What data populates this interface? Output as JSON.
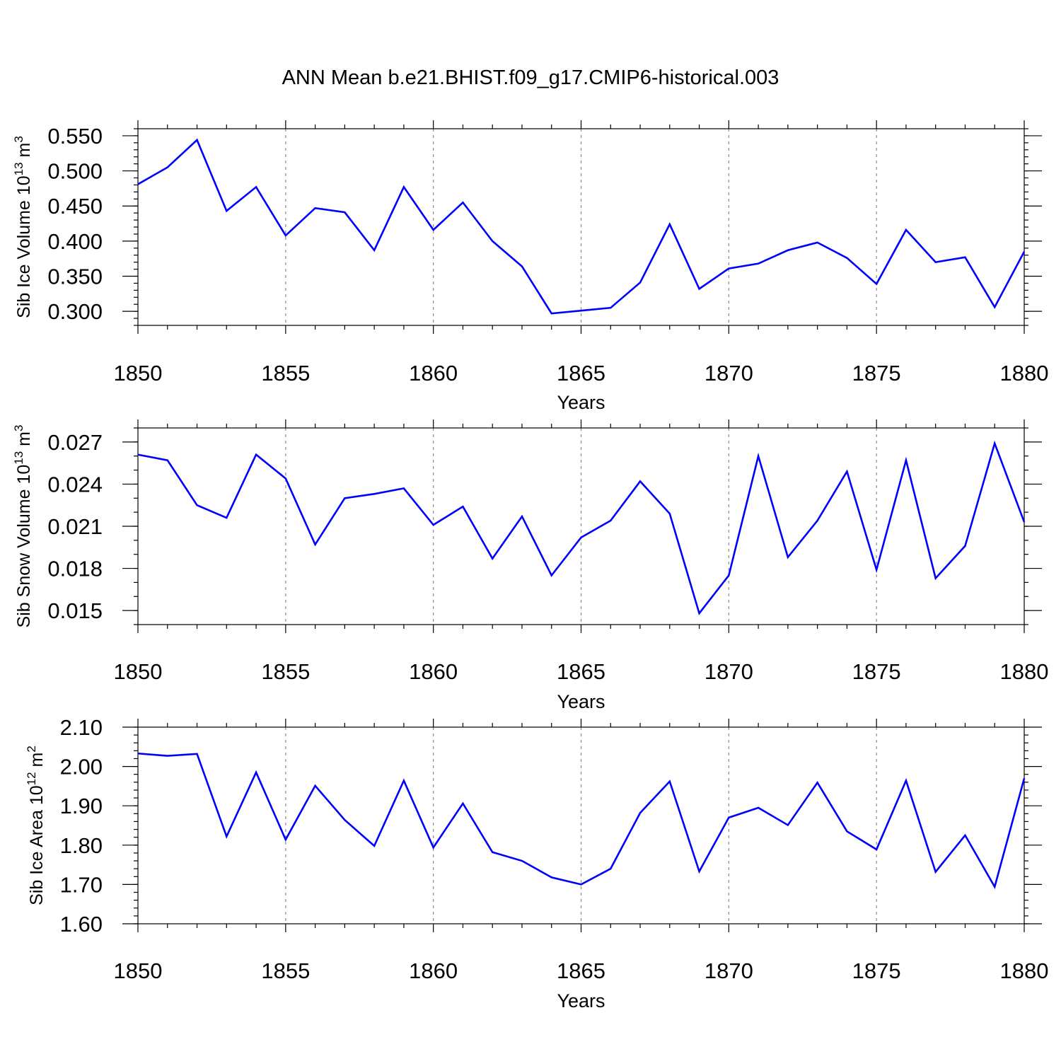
{
  "figure": {
    "title": "ANN Mean b.e21.BHIST.f09_g17.CMIP6-historical.003"
  },
  "colors": {
    "series": "#0000ff",
    "axis": "#000000",
    "grid": "#8a8a8a",
    "background": "#ffffff"
  },
  "chart_data": [
    {
      "type": "line",
      "ylabel": "Sib Ice Volume 10",
      "ylabel_exp": "13",
      "ylabel_unit": " m",
      "ylabel_unit_exp": "3",
      "xlabel": "Years",
      "xlim": [
        1850,
        1880
      ],
      "ylim": [
        0.28,
        0.56
      ],
      "x_ticks": [
        1850,
        1855,
        1860,
        1865,
        1870,
        1875,
        1880
      ],
      "y_ticks": [
        "0.300",
        "0.350",
        "0.400",
        "0.450",
        "0.500",
        "0.550"
      ],
      "y_minor_step": 0.01,
      "grid_x": "dashed",
      "series": [
        {
          "name": "Sib Ice Volume",
          "x": [
            1850,
            1851,
            1852,
            1853,
            1854,
            1855,
            1856,
            1857,
            1858,
            1859,
            1860,
            1861,
            1862,
            1863,
            1864,
            1865,
            1866,
            1867,
            1868,
            1869,
            1870,
            1871,
            1872,
            1873,
            1874,
            1875,
            1876,
            1877,
            1878,
            1879,
            1880
          ],
          "values": [
            0.481,
            0.505,
            0.544,
            0.443,
            0.477,
            0.408,
            0.447,
            0.441,
            0.387,
            0.477,
            0.416,
            0.455,
            0.4,
            0.364,
            0.297,
            0.301,
            0.305,
            0.341,
            0.424,
            0.332,
            0.361,
            0.368,
            0.387,
            0.398,
            0.376,
            0.339,
            0.416,
            0.37,
            0.377,
            0.306,
            0.385
          ]
        }
      ]
    },
    {
      "type": "line",
      "ylabel": "Sib Snow Volume 10",
      "ylabel_exp": "13",
      "ylabel_unit": " m",
      "ylabel_unit_exp": "3",
      "xlabel": "Years",
      "xlim": [
        1850,
        1880
      ],
      "ylim": [
        0.014,
        0.028
      ],
      "x_ticks": [
        1850,
        1855,
        1860,
        1865,
        1870,
        1875,
        1880
      ],
      "y_ticks": [
        "0.015",
        "0.018",
        "0.021",
        "0.024",
        "0.027"
      ],
      "y_minor_step": 0.001,
      "grid_x": "dashed",
      "series": [
        {
          "name": "Sib Snow Volume",
          "x": [
            1850,
            1851,
            1852,
            1853,
            1854,
            1855,
            1856,
            1857,
            1858,
            1859,
            1860,
            1861,
            1862,
            1863,
            1864,
            1865,
            1866,
            1867,
            1868,
            1869,
            1870,
            1871,
            1872,
            1873,
            1874,
            1875,
            1876,
            1877,
            1878,
            1879,
            1880
          ],
          "values": [
            0.0261,
            0.0257,
            0.0225,
            0.0216,
            0.0261,
            0.0244,
            0.0197,
            0.023,
            0.0233,
            0.0237,
            0.0211,
            0.0224,
            0.0187,
            0.0217,
            0.0175,
            0.0202,
            0.0214,
            0.0242,
            0.0219,
            0.0148,
            0.0175,
            0.026,
            0.0188,
            0.0214,
            0.0249,
            0.0179,
            0.0257,
            0.0173,
            0.0196,
            0.0269,
            0.0213
          ]
        }
      ]
    },
    {
      "type": "line",
      "ylabel": "Sib Ice Area 10",
      "ylabel_exp": "12",
      "ylabel_unit": " m",
      "ylabel_unit_exp": "2",
      "xlabel": "Years",
      "xlim": [
        1850,
        1880
      ],
      "ylim": [
        1.6,
        2.1
      ],
      "x_ticks": [
        1850,
        1855,
        1860,
        1865,
        1870,
        1875,
        1880
      ],
      "y_ticks": [
        "1.60",
        "1.70",
        "1.80",
        "1.90",
        "2.00",
        "2.10"
      ],
      "y_minor_step": 0.02,
      "grid_x": "dashed",
      "series": [
        {
          "name": "Sib Ice Area",
          "x": [
            1850,
            1851,
            1852,
            1853,
            1854,
            1855,
            1856,
            1857,
            1858,
            1859,
            1860,
            1861,
            1862,
            1863,
            1864,
            1865,
            1866,
            1867,
            1868,
            1869,
            1870,
            1871,
            1872,
            1873,
            1874,
            1875,
            1876,
            1877,
            1878,
            1879,
            1880
          ],
          "values": [
            2.033,
            2.027,
            2.032,
            1.822,
            1.985,
            1.814,
            1.951,
            1.864,
            1.798,
            1.964,
            1.794,
            1.906,
            1.782,
            1.76,
            1.718,
            1.7,
            1.74,
            1.882,
            1.962,
            1.733,
            1.87,
            1.895,
            1.851,
            1.959,
            1.835,
            1.789,
            1.964,
            1.732,
            1.825,
            1.694,
            1.97
          ]
        }
      ]
    }
  ]
}
